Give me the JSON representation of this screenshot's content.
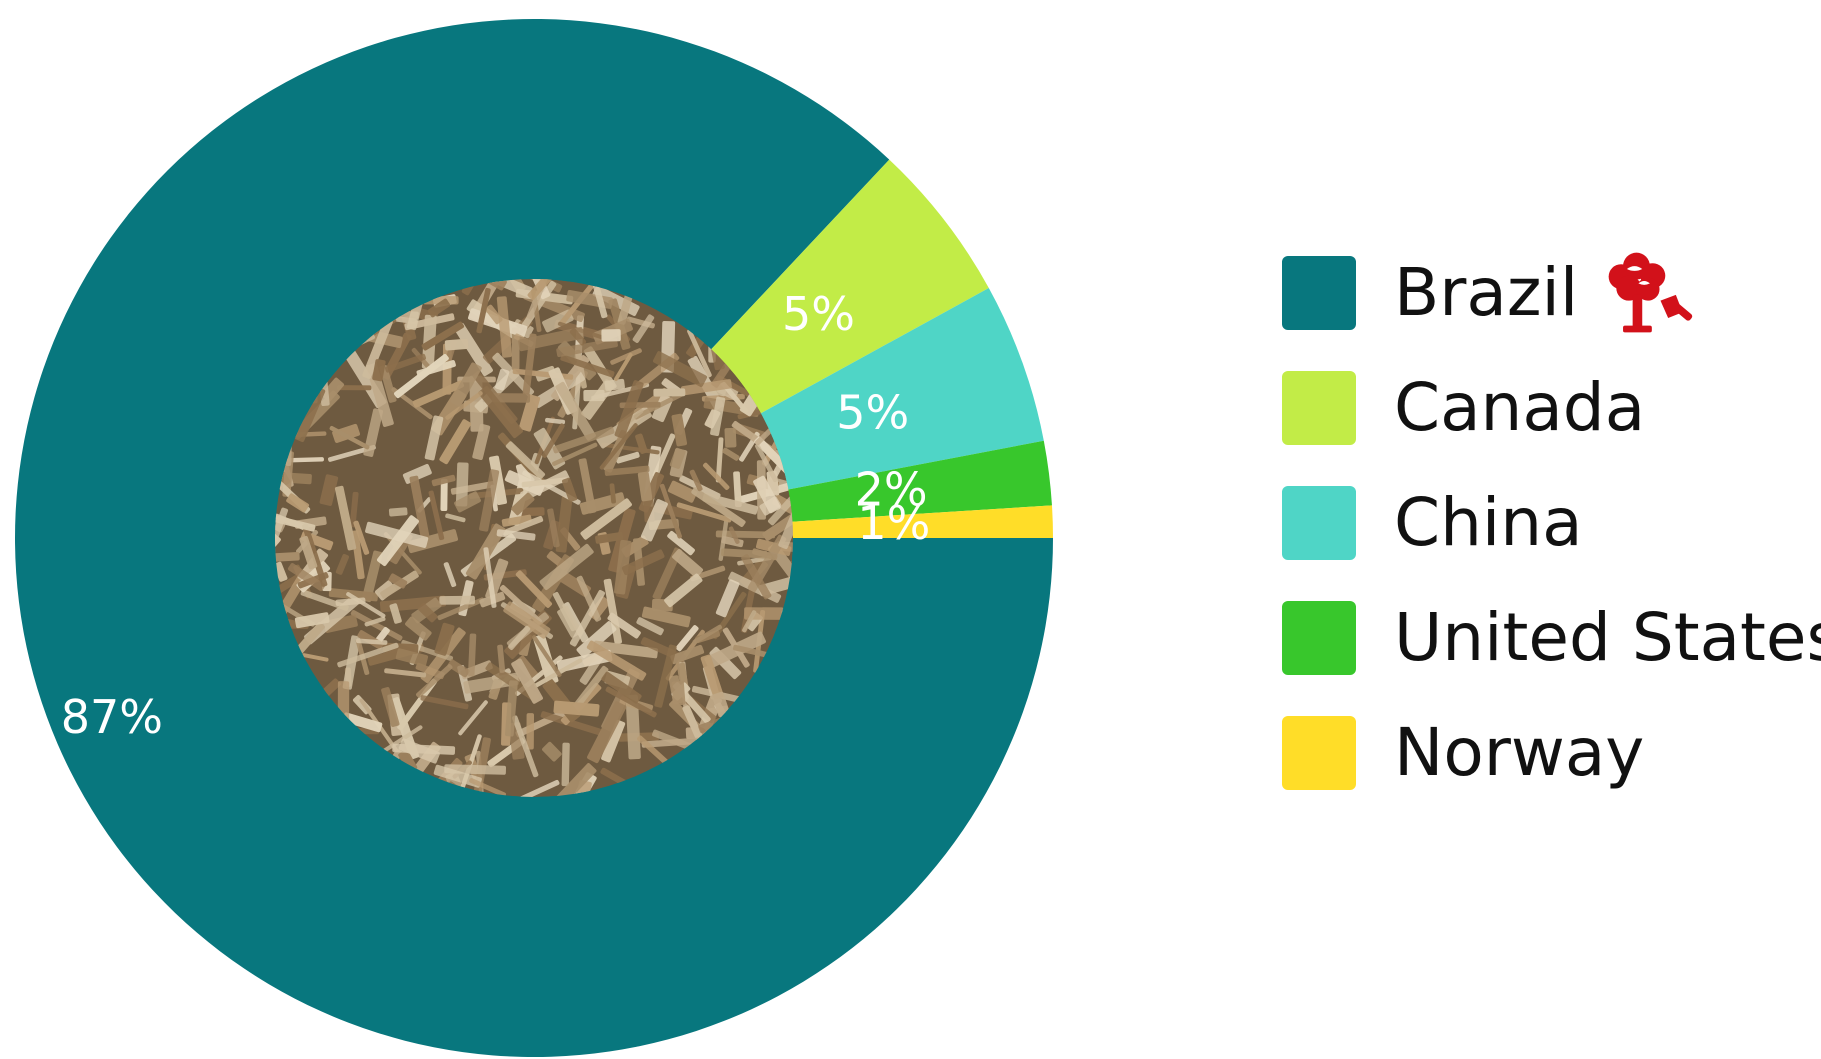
{
  "chart_data": {
    "type": "pie",
    "categories": [
      "Brazil",
      "Canada",
      "China",
      "United States",
      "Norway"
    ],
    "values": [
      87,
      5,
      5,
      2,
      1
    ],
    "value_labels": [
      "87%",
      "5%",
      "5%",
      "2%",
      "1%"
    ],
    "colors": [
      "#08777e",
      "#c2ec47",
      "#4fd5c6",
      "#38c72c",
      "#ffdd28"
    ],
    "donut": true,
    "center_image": "wood chips photo",
    "legend_position": "right",
    "title": ""
  },
  "legend": {
    "items": [
      {
        "label": "Brazil",
        "color": "#08777e"
      },
      {
        "label": "Canada",
        "color": "#c2ec47"
      },
      {
        "label": "China",
        "color": "#4fd5c6"
      },
      {
        "label": "United States",
        "color": "#38c72c"
      },
      {
        "label": "Norway",
        "color": "#ffdd28"
      }
    ],
    "brand_icon": "tree-and-axe-icon",
    "brand_icon_color": "#d2111a"
  }
}
